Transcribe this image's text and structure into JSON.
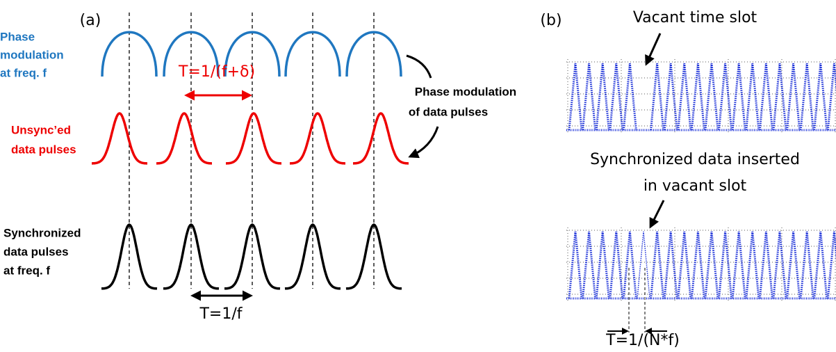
{
  "panel_a": {
    "label": "(a)",
    "phase_modulation_label": [
      "Phase",
      "modulation",
      "at freq. f"
    ],
    "unsynced_label": [
      "Unsync’ed",
      "data pulses"
    ],
    "synchronized_label": [
      "Synchronized",
      "data pulses",
      "at freq. f"
    ],
    "modulation_of_pulses_label": [
      "Phase modulation",
      "of data pulses"
    ],
    "unsynced_period": "T=1/(f+δ)",
    "sync_period": "T=1/f"
  },
  "panel_b": {
    "label": "(b)",
    "vacant_label": "Vacant time slot",
    "inserted_label": [
      "Synchronized data inserted",
      "in vacant slot"
    ],
    "slot_period": "T=1/(N*f)"
  }
}
